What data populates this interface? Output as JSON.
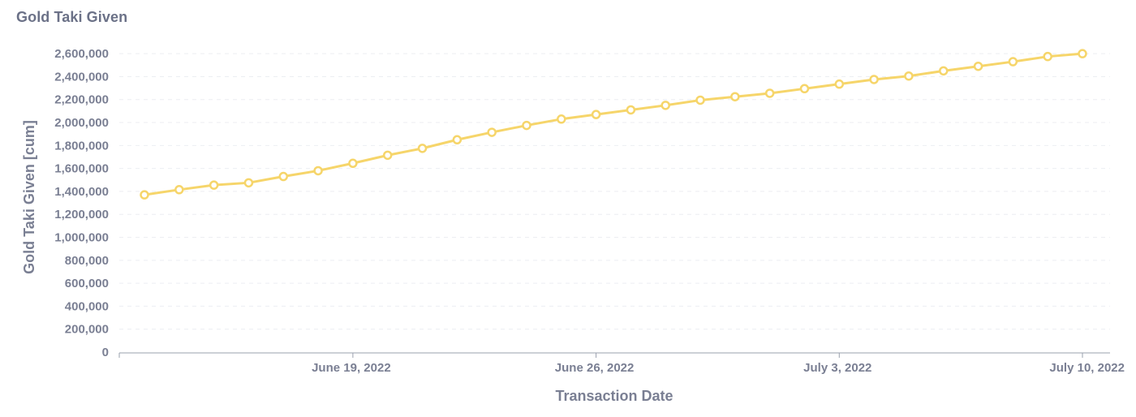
{
  "title": "Gold Taki Given",
  "colors": {
    "line": "#f6d56a",
    "point_fill": "#ffffff",
    "grid": "#eceef2",
    "axis": "#9aa0ae",
    "text": "#7a7f93"
  },
  "chart_data": {
    "type": "line",
    "title": "Gold Taki Given",
    "xlabel": "Transaction Date",
    "ylabel": "Gold Taki Given [cum]",
    "x_tick_labels": [
      "June 19, 2022",
      "June 26, 2022",
      "July 3, 2022",
      "July 10, 2022"
    ],
    "x_tick_dates": [
      "2022-06-19",
      "2022-06-26",
      "2022-07-03",
      "2022-07-10"
    ],
    "x_range": [
      "2022-06-13",
      "2022-07-10"
    ],
    "y_tick_labels": [
      "0",
      "200,000",
      "400,000",
      "600,000",
      "800,000",
      "1,000,000",
      "1,200,000",
      "1,400,000",
      "1,600,000",
      "1,800,000",
      "2,000,000",
      "2,200,000",
      "2,400,000",
      "2,600,000"
    ],
    "ylim": [
      0,
      2700000
    ],
    "grid": true,
    "legend": false,
    "series": [
      {
        "x": [
          "2022-06-13",
          "2022-06-14",
          "2022-06-15",
          "2022-06-16",
          "2022-06-17",
          "2022-06-18",
          "2022-06-19",
          "2022-06-20",
          "2022-06-21",
          "2022-06-22",
          "2022-06-23",
          "2022-06-24",
          "2022-06-25",
          "2022-06-26",
          "2022-06-27",
          "2022-06-28",
          "2022-06-29",
          "2022-06-30",
          "2022-07-01",
          "2022-07-02",
          "2022-07-03",
          "2022-07-04",
          "2022-07-05",
          "2022-07-06",
          "2022-07-07",
          "2022-07-08",
          "2022-07-09",
          "2022-07-10"
        ],
        "values": [
          1370000,
          1415000,
          1455000,
          1475000,
          1530000,
          1580000,
          1645000,
          1715000,
          1775000,
          1850000,
          1915000,
          1975000,
          2030000,
          2070000,
          2110000,
          2150000,
          2195000,
          2225000,
          2255000,
          2295000,
          2335000,
          2375000,
          2405000,
          2450000,
          2490000,
          2530000,
          2575000,
          2600000
        ]
      }
    ]
  }
}
